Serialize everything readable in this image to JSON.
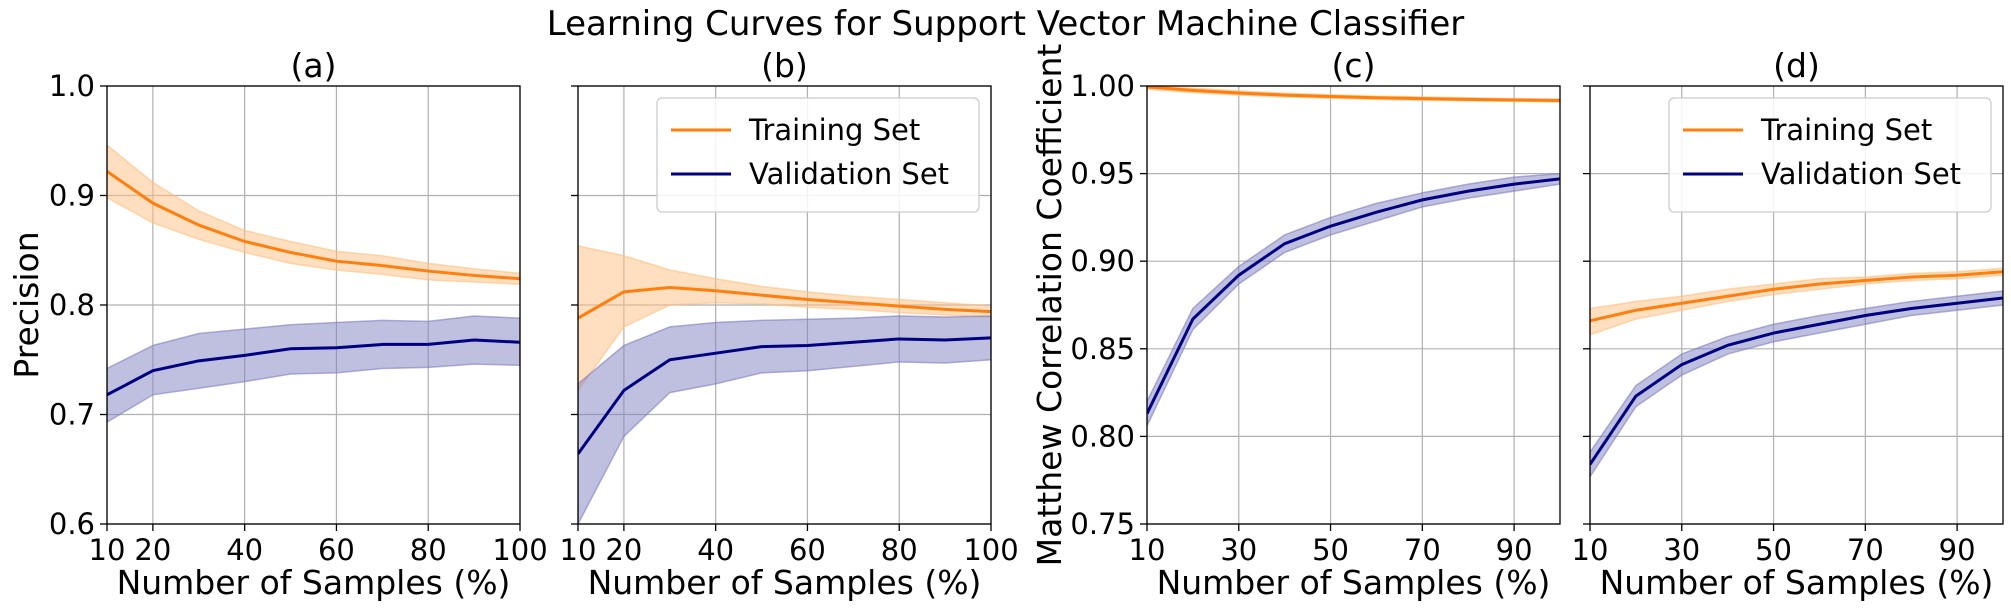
{
  "figure": {
    "title": "Learning Curves for Support Vector Machine Classifier"
  },
  "colors": {
    "training": "#ff7f0e",
    "training_band": "#ffbf7f",
    "validation": "#000080",
    "validation_band": "#7f7fc0"
  },
  "chart_data": [
    {
      "type": "line",
      "panel_title": "(a)",
      "xlabel": "Number of Samples (%)",
      "ylabel": "Precision",
      "xlim": [
        10,
        100
      ],
      "ylim": [
        0.6,
        1.0
      ],
      "xticks": [
        10,
        20,
        40,
        60,
        80,
        100
      ],
      "yticks": [
        0.6,
        0.7,
        0.8,
        0.9,
        1.0
      ],
      "ytick_labels": [
        "0.6",
        "0.7",
        "0.8",
        "0.9",
        "1.0"
      ],
      "show_ytick_labels": true,
      "grid": true,
      "legend": null,
      "x": [
        10,
        20,
        30,
        40,
        50,
        60,
        70,
        80,
        90,
        100
      ],
      "series": [
        {
          "name": "Training Set",
          "color_key": "training",
          "values": [
            0.922,
            0.893,
            0.873,
            0.858,
            0.848,
            0.84,
            0.836,
            0.831,
            0.827,
            0.824
          ],
          "lower": [
            0.898,
            0.875,
            0.86,
            0.848,
            0.838,
            0.832,
            0.828,
            0.823,
            0.821,
            0.819
          ],
          "upper": [
            0.946,
            0.912,
            0.886,
            0.868,
            0.858,
            0.849,
            0.845,
            0.838,
            0.833,
            0.829
          ]
        },
        {
          "name": "Validation Set",
          "color_key": "validation",
          "values": [
            0.718,
            0.74,
            0.749,
            0.754,
            0.76,
            0.761,
            0.764,
            0.764,
            0.768,
            0.766
          ],
          "lower": [
            0.693,
            0.718,
            0.724,
            0.73,
            0.737,
            0.738,
            0.742,
            0.743,
            0.746,
            0.745
          ],
          "upper": [
            0.742,
            0.763,
            0.774,
            0.778,
            0.782,
            0.784,
            0.786,
            0.785,
            0.79,
            0.788
          ]
        }
      ]
    },
    {
      "type": "line",
      "panel_title": "(b)",
      "xlabel": "Number of Samples (%)",
      "ylabel": "",
      "xlim": [
        10,
        100
      ],
      "ylim": [
        0.6,
        1.0
      ],
      "xticks": [
        10,
        20,
        40,
        60,
        80,
        100
      ],
      "yticks": [
        0.6,
        0.7,
        0.8,
        0.9,
        1.0
      ],
      "ytick_labels": [],
      "show_ytick_labels": false,
      "grid": true,
      "legend": "top-right",
      "x": [
        10,
        20,
        30,
        40,
        50,
        60,
        70,
        80,
        90,
        100
      ],
      "series": [
        {
          "name": "Training Set",
          "color_key": "training",
          "values": [
            0.788,
            0.812,
            0.816,
            0.813,
            0.809,
            0.805,
            0.802,
            0.799,
            0.796,
            0.794
          ],
          "lower": [
            0.722,
            0.78,
            0.8,
            0.802,
            0.801,
            0.798,
            0.796,
            0.793,
            0.791,
            0.789
          ],
          "upper": [
            0.854,
            0.845,
            0.832,
            0.824,
            0.817,
            0.812,
            0.808,
            0.805,
            0.802,
            0.799
          ]
        },
        {
          "name": "Validation Set",
          "color_key": "validation",
          "values": [
            0.664,
            0.722,
            0.75,
            0.756,
            0.762,
            0.763,
            0.766,
            0.769,
            0.768,
            0.77
          ],
          "lower": [
            0.6,
            0.68,
            0.72,
            0.728,
            0.738,
            0.74,
            0.744,
            0.748,
            0.747,
            0.75
          ],
          "upper": [
            0.728,
            0.763,
            0.78,
            0.784,
            0.786,
            0.787,
            0.788,
            0.79,
            0.789,
            0.79
          ]
        }
      ]
    },
    {
      "type": "line",
      "panel_title": "(c)",
      "xlabel": "Number of Samples (%)",
      "ylabel": "Matthew Correlation Coefficient",
      "xlim": [
        10,
        100
      ],
      "ylim": [
        0.75,
        1.0
      ],
      "xticks": [
        10,
        30,
        50,
        70,
        90
      ],
      "yticks": [
        0.75,
        0.8,
        0.85,
        0.9,
        0.95,
        1.0
      ],
      "ytick_labels": [
        "0.75",
        "0.80",
        "0.85",
        "0.90",
        "0.95",
        "1.00"
      ],
      "show_ytick_labels": true,
      "grid": true,
      "legend": null,
      "x": [
        10,
        20,
        30,
        40,
        50,
        60,
        70,
        80,
        90,
        100
      ],
      "series": [
        {
          "name": "Training Set",
          "color_key": "training",
          "values": [
            0.9995,
            0.9975,
            0.996,
            0.9948,
            0.994,
            0.9933,
            0.9928,
            0.9924,
            0.992,
            0.9917
          ],
          "lower": [
            0.9982,
            0.9962,
            0.9948,
            0.9937,
            0.993,
            0.9924,
            0.9919,
            0.9915,
            0.9912,
            0.9909
          ],
          "upper": [
            1.0,
            0.9988,
            0.9972,
            0.9959,
            0.995,
            0.9942,
            0.9937,
            0.9933,
            0.9928,
            0.9925
          ]
        },
        {
          "name": "Validation Set",
          "color_key": "validation",
          "values": [
            0.813,
            0.867,
            0.892,
            0.91,
            0.92,
            0.928,
            0.935,
            0.94,
            0.944,
            0.947
          ],
          "lower": [
            0.806,
            0.861,
            0.887,
            0.905,
            0.915,
            0.923,
            0.931,
            0.936,
            0.94,
            0.944
          ],
          "upper": [
            0.82,
            0.873,
            0.897,
            0.915,
            0.925,
            0.933,
            0.939,
            0.944,
            0.948,
            0.95
          ]
        }
      ]
    },
    {
      "type": "line",
      "panel_title": "(d)",
      "xlabel": "Number of Samples (%)",
      "ylabel": "",
      "xlim": [
        10,
        100
      ],
      "ylim": [
        0.75,
        1.0
      ],
      "xticks": [
        10,
        30,
        50,
        70,
        90
      ],
      "yticks": [
        0.75,
        0.8,
        0.85,
        0.9,
        0.95,
        1.0
      ],
      "ytick_labels": [],
      "show_ytick_labels": false,
      "grid": true,
      "legend": "top-right",
      "x": [
        10,
        20,
        30,
        40,
        50,
        60,
        70,
        80,
        90,
        100
      ],
      "series": [
        {
          "name": "Training Set",
          "color_key": "training",
          "values": [
            0.866,
            0.872,
            0.876,
            0.88,
            0.884,
            0.887,
            0.889,
            0.891,
            0.892,
            0.894
          ],
          "lower": [
            0.858,
            0.867,
            0.872,
            0.877,
            0.881,
            0.884,
            0.887,
            0.889,
            0.89,
            0.892
          ],
          "upper": [
            0.873,
            0.877,
            0.88,
            0.884,
            0.887,
            0.89,
            0.891,
            0.893,
            0.894,
            0.896
          ]
        },
        {
          "name": "Validation Set",
          "color_key": "validation",
          "values": [
            0.784,
            0.823,
            0.841,
            0.852,
            0.859,
            0.864,
            0.869,
            0.873,
            0.876,
            0.879
          ],
          "lower": [
            0.777,
            0.817,
            0.835,
            0.847,
            0.854,
            0.859,
            0.864,
            0.869,
            0.872,
            0.875
          ],
          "upper": [
            0.791,
            0.829,
            0.847,
            0.857,
            0.864,
            0.869,
            0.873,
            0.877,
            0.88,
            0.883
          ]
        }
      ]
    }
  ]
}
